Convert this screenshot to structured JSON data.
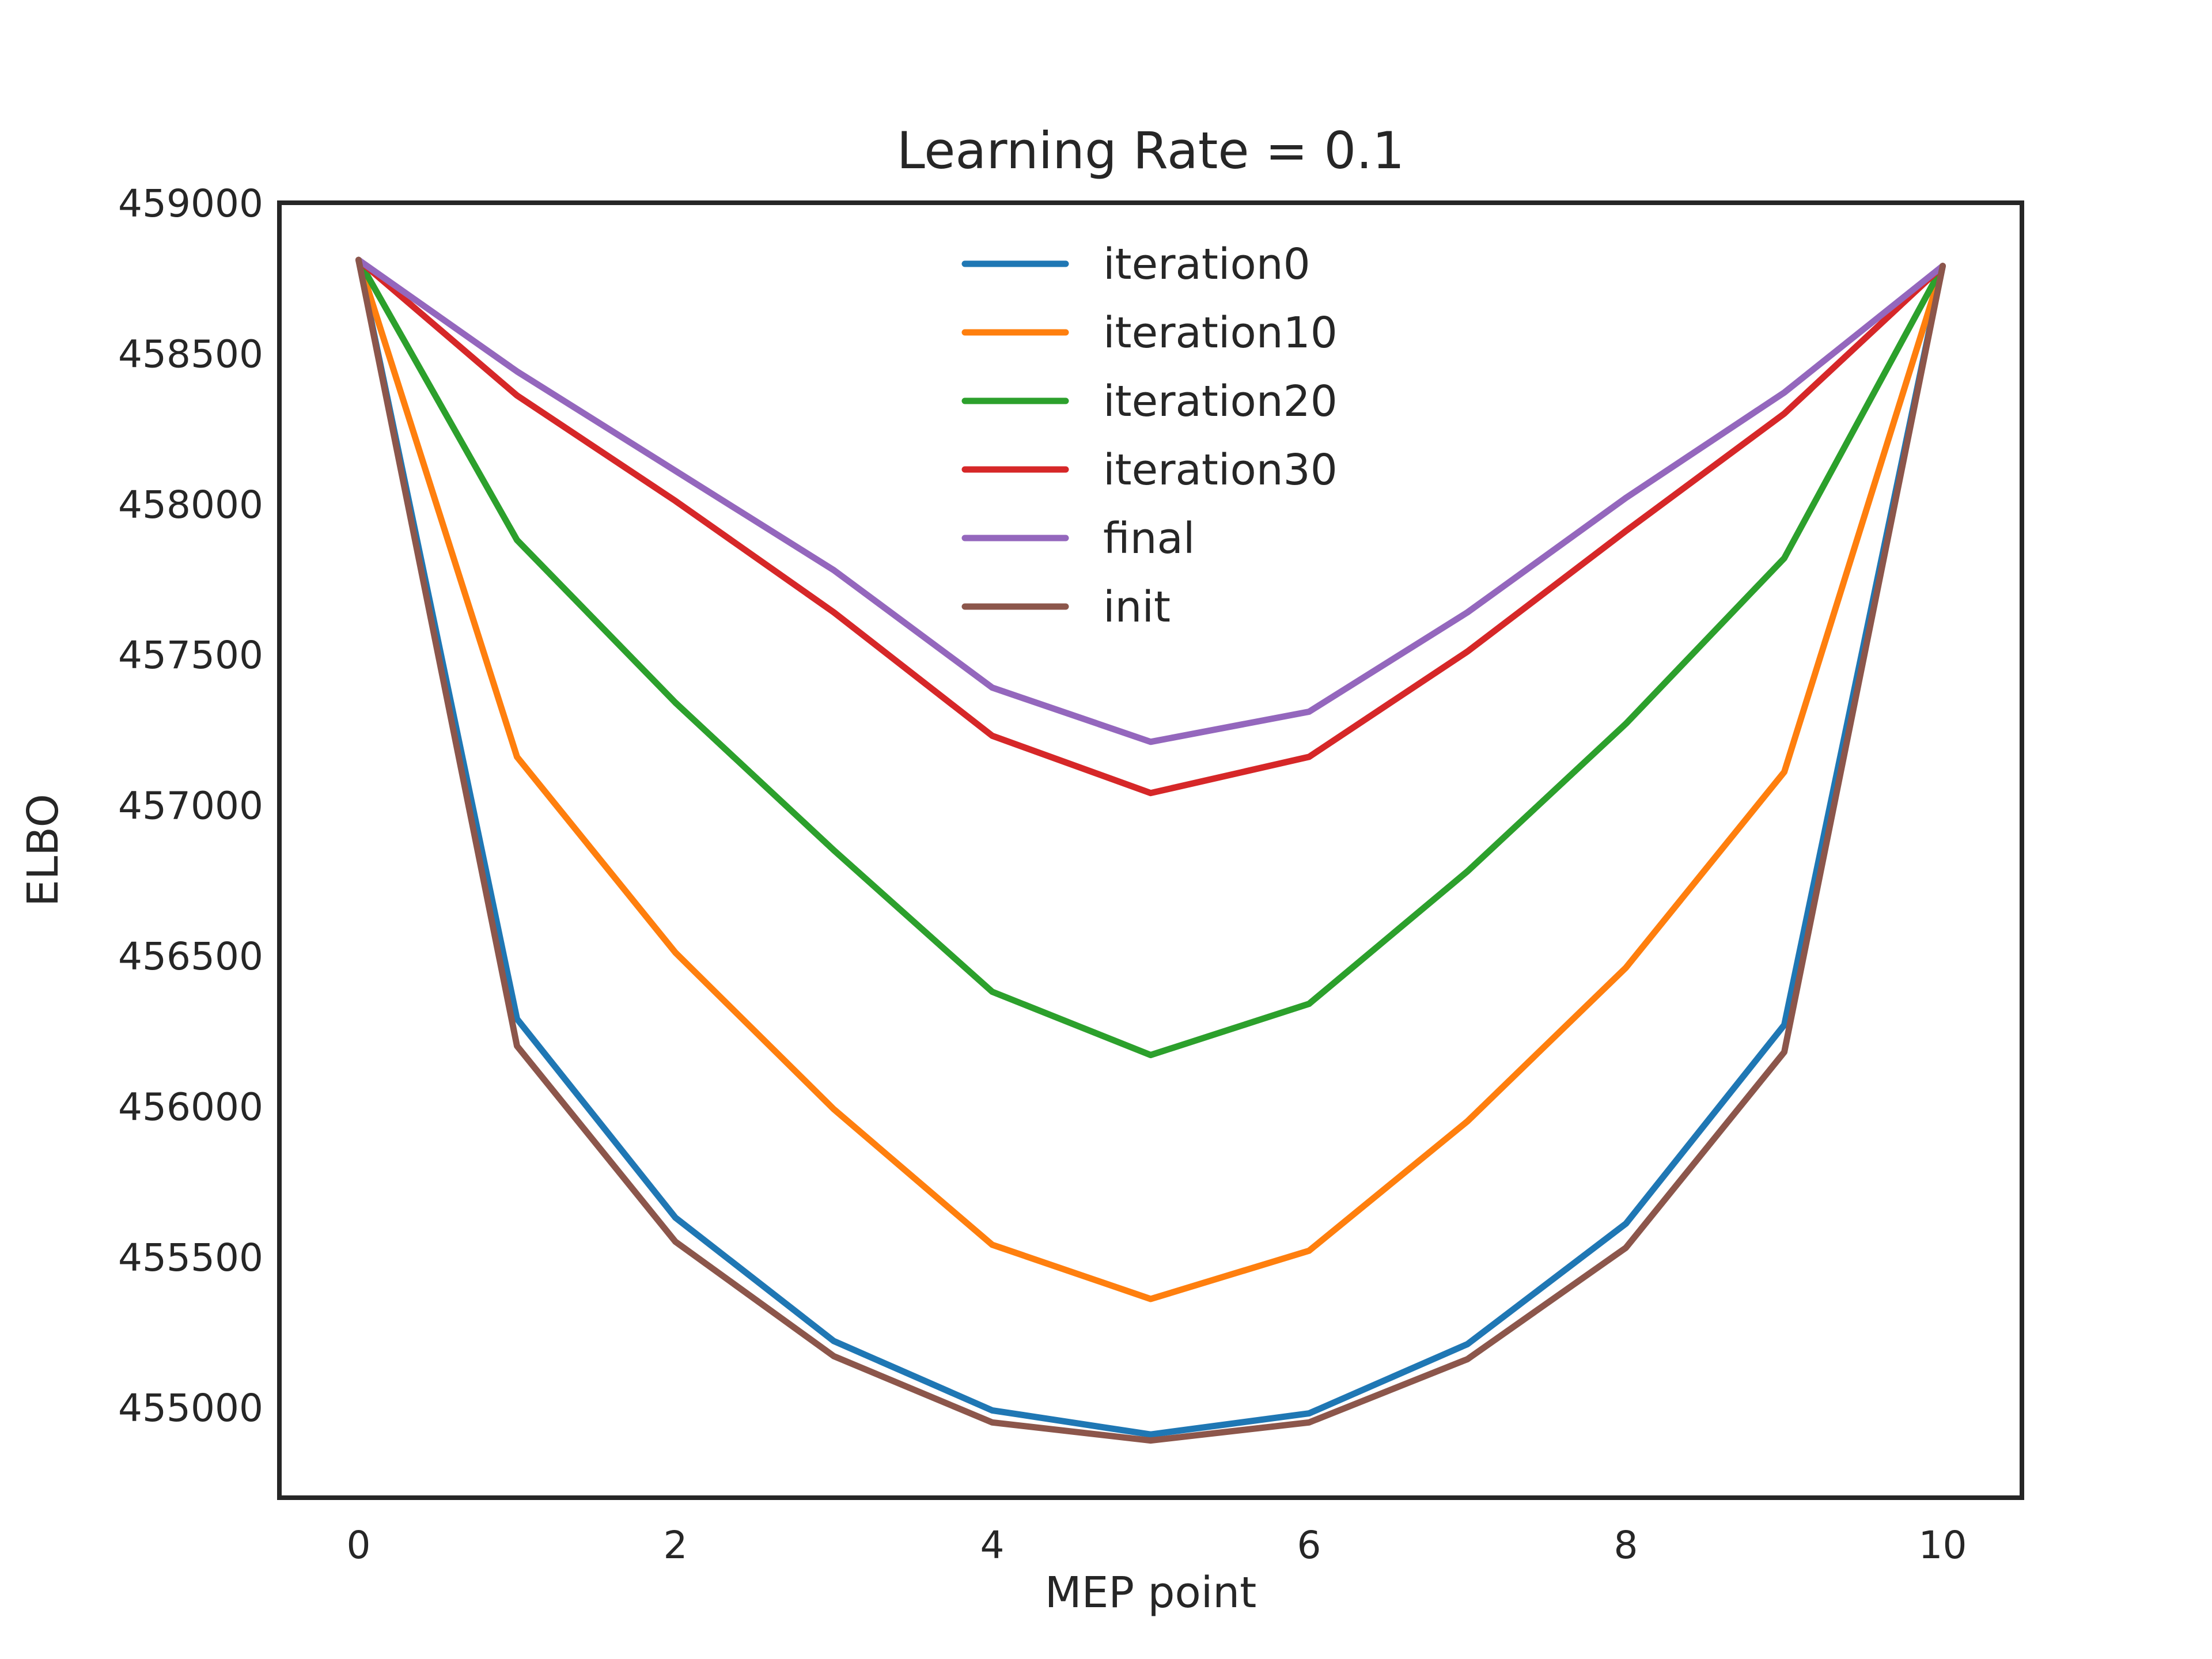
{
  "chart_data": {
    "type": "line",
    "title": "Learning Rate = 0.1",
    "xlabel": "MEP point",
    "ylabel": "ELBO",
    "xlim": [
      -0.5,
      10.5
    ],
    "ylim": [
      454700,
      459000
    ],
    "xticks": [
      0,
      2,
      4,
      6,
      8,
      10
    ],
    "yticks": [
      455000,
      455500,
      456000,
      456500,
      457000,
      457500,
      458000,
      458500,
      459000
    ],
    "grid": false,
    "legend_position": "top-center",
    "x": [
      0,
      1,
      2,
      3,
      4,
      5,
      6,
      7,
      8,
      9,
      10
    ],
    "series": [
      {
        "name": "iteration0",
        "color": "#1f77b4",
        "values": [
          458810,
          456290,
          455630,
          455220,
          454990,
          454910,
          454980,
          455210,
          455610,
          456270,
          458790
        ]
      },
      {
        "name": "iteration10",
        "color": "#ff7f0e",
        "values": [
          458810,
          457160,
          456510,
          455990,
          455540,
          455360,
          455520,
          455950,
          456460,
          457110,
          458790
        ]
      },
      {
        "name": "iteration20",
        "color": "#2ca02c",
        "values": [
          458810,
          457880,
          457340,
          456850,
          456380,
          456170,
          456340,
          456780,
          457270,
          457820,
          458790
        ]
      },
      {
        "name": "iteration30",
        "color": "#d62728",
        "values": [
          458810,
          458360,
          458010,
          457640,
          457230,
          457040,
          457160,
          457510,
          457910,
          458300,
          458790
        ]
      },
      {
        "name": "final",
        "color": "#9467bd",
        "values": [
          458810,
          458440,
          458110,
          457780,
          457390,
          457210,
          457310,
          457640,
          458020,
          458370,
          458790
        ]
      },
      {
        "name": "init",
        "color": "#8c564b",
        "values": [
          458810,
          456200,
          455550,
          455170,
          454950,
          454890,
          454950,
          455160,
          455530,
          456180,
          458790
        ]
      }
    ]
  }
}
